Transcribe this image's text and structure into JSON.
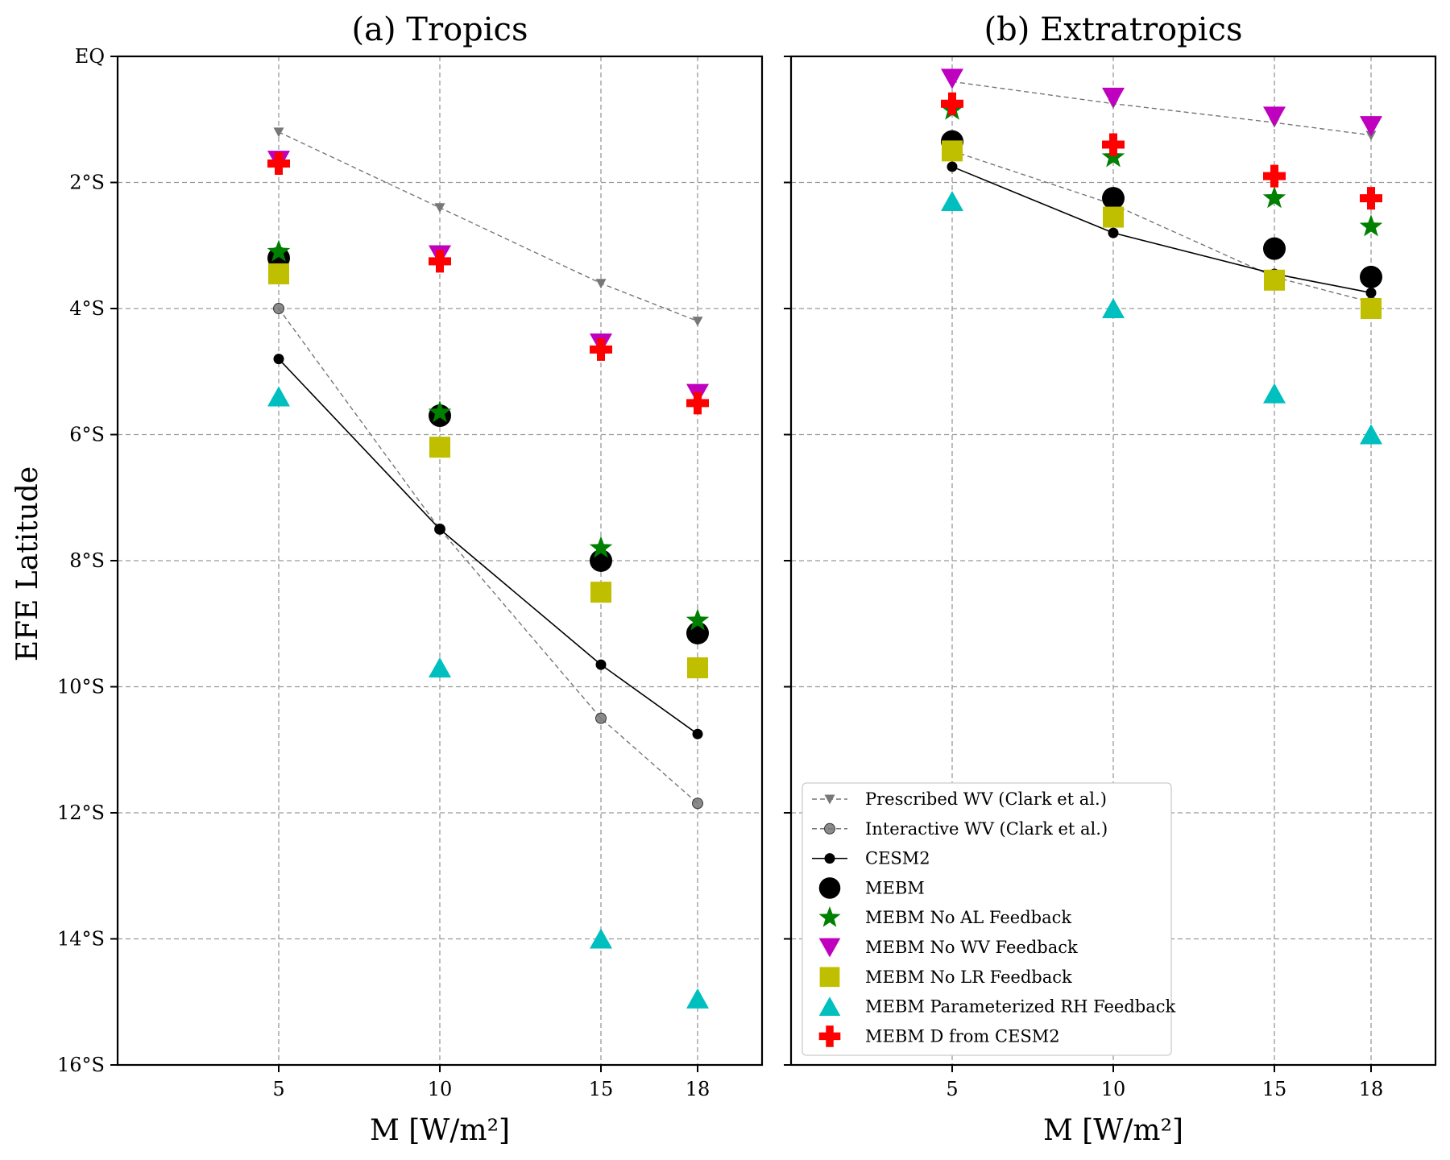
{
  "chart_data": [
    {
      "type": "scatter",
      "title": "(a) Tropics",
      "xlabel": "M [W/m²]",
      "ylabel": "EFE Latitude",
      "x_ticks": [
        5,
        10,
        15,
        18
      ],
      "xlim": [
        0,
        20
      ],
      "y_ticks": [
        0,
        -2,
        -4,
        -6,
        -8,
        -10,
        -12,
        -14,
        -16
      ],
      "y_tick_labels": [
        "EQ",
        "2°S",
        "4°S",
        "6°S",
        "8°S",
        "10°S",
        "12°S",
        "14°S",
        "16°S"
      ],
      "ylim": [
        -16,
        0
      ],
      "grid": true,
      "series": [
        {
          "name": "Prescribed WV (Clark et al.)",
          "style": "line-dashed-tri",
          "color": "#777777",
          "x": [
            5,
            10,
            15,
            18
          ],
          "y": [
            -1.2,
            -2.4,
            -3.6,
            -4.2
          ]
        },
        {
          "name": "Interactive WV (Clark et al.)",
          "style": "line-dashed-circle",
          "color": "#777777",
          "x": [
            5,
            10,
            15,
            18
          ],
          "y": [
            -4.0,
            -7.5,
            -10.5,
            -11.85
          ]
        },
        {
          "name": "CESM2",
          "style": "line-solid-dot",
          "color": "#000000",
          "x": [
            5,
            10,
            15,
            18
          ],
          "y": [
            -4.8,
            -7.5,
            -9.65,
            -10.75
          ]
        },
        {
          "name": "MEBM",
          "style": "big-circle",
          "color": "#000000",
          "x": [
            5,
            10,
            15,
            18
          ],
          "y": [
            -3.2,
            -5.7,
            -8.0,
            -9.15
          ]
        },
        {
          "name": "MEBM No AL Feedback",
          "style": "star",
          "color": "#008000",
          "x": [
            5,
            10,
            15,
            18
          ],
          "y": [
            -3.1,
            -5.65,
            -7.8,
            -8.95
          ]
        },
        {
          "name": "MEBM No WV Feedback",
          "style": "tri-down",
          "color": "#bf00bf",
          "x": [
            5,
            10,
            15,
            18
          ],
          "y": [
            -1.65,
            -3.15,
            -4.55,
            -5.35
          ]
        },
        {
          "name": "MEBM No LR Feedback",
          "style": "square",
          "color": "#bfbf00",
          "x": [
            5,
            10,
            15,
            18
          ],
          "y": [
            -3.45,
            -6.2,
            -8.5,
            -9.7
          ]
        },
        {
          "name": "MEBM Parameterized RH Feedback",
          "style": "tri-up",
          "color": "#00bfbf",
          "x": [
            5,
            10,
            15,
            18
          ],
          "y": [
            -5.4,
            -9.7,
            -14.0,
            -14.95
          ]
        },
        {
          "name": "MEBM D from CESM2",
          "style": "plus",
          "color": "#ff0000",
          "x": [
            5,
            10,
            15,
            18
          ],
          "y": [
            -1.7,
            -3.25,
            -4.65,
            -5.5
          ]
        }
      ]
    },
    {
      "type": "scatter",
      "title": "(b) Extratropics",
      "xlabel": "M [W/m²]",
      "x_ticks": [
        5,
        10,
        15,
        18
      ],
      "xlim": [
        0,
        20
      ],
      "y_ticks": [
        0,
        -2,
        -4,
        -6,
        -8,
        -10,
        -12,
        -14,
        -16
      ],
      "ylim": [
        -16,
        0
      ],
      "grid": true,
      "legend": {
        "position": "lower-left",
        "entries": [
          "Prescribed WV (Clark et al.)",
          "Interactive WV (Clark et al.)",
          "CESM2",
          "MEBM",
          "MEBM No AL Feedback",
          "MEBM No WV Feedback",
          "MEBM No LR Feedback",
          "MEBM Parameterized RH Feedback",
          "MEBM D from CESM2"
        ]
      },
      "series": [
        {
          "name": "Prescribed WV (Clark et al.)",
          "style": "line-dashed-tri",
          "color": "#777777",
          "x": [
            5,
            10,
            15,
            18
          ],
          "y": [
            -0.4,
            -0.75,
            -1.05,
            -1.25
          ]
        },
        {
          "name": "Interactive WV (Clark et al.)",
          "style": "line-dashed-circle",
          "color": "#777777",
          "x": [
            5,
            10,
            15,
            18
          ],
          "y": [
            -1.5,
            -2.35,
            -3.5,
            -3.9
          ]
        },
        {
          "name": "CESM2",
          "style": "line-solid-dot",
          "color": "#000000",
          "x": [
            5,
            10,
            15,
            18
          ],
          "y": [
            -1.75,
            -2.8,
            -3.45,
            -3.75
          ]
        },
        {
          "name": "MEBM",
          "style": "big-circle",
          "color": "#000000",
          "x": [
            5,
            10,
            15,
            18
          ],
          "y": [
            -1.35,
            -2.25,
            -3.05,
            -3.5
          ]
        },
        {
          "name": "MEBM No AL Feedback",
          "style": "star",
          "color": "#008000",
          "x": [
            5,
            10,
            15,
            18
          ],
          "y": [
            -0.85,
            -1.6,
            -2.25,
            -2.7
          ]
        },
        {
          "name": "MEBM No WV Feedback",
          "style": "tri-down",
          "color": "#bf00bf",
          "x": [
            5,
            10,
            15,
            18
          ],
          "y": [
            -0.35,
            -0.65,
            -0.95,
            -1.1
          ]
        },
        {
          "name": "MEBM No LR Feedback",
          "style": "square",
          "color": "#bfbf00",
          "x": [
            5,
            10,
            15,
            18
          ],
          "y": [
            -1.5,
            -2.55,
            -3.55,
            -4.0
          ]
        },
        {
          "name": "MEBM Parameterized RH Feedback",
          "style": "tri-up",
          "color": "#00bfbf",
          "x": [
            5,
            10,
            15,
            18
          ],
          "y": [
            -2.3,
            -4.0,
            -5.35,
            -6.0
          ]
        },
        {
          "name": "MEBM D from CESM2",
          "style": "plus",
          "color": "#ff0000",
          "x": [
            5,
            10,
            15,
            18
          ],
          "y": [
            -0.75,
            -1.4,
            -1.9,
            -2.25
          ]
        }
      ]
    }
  ]
}
